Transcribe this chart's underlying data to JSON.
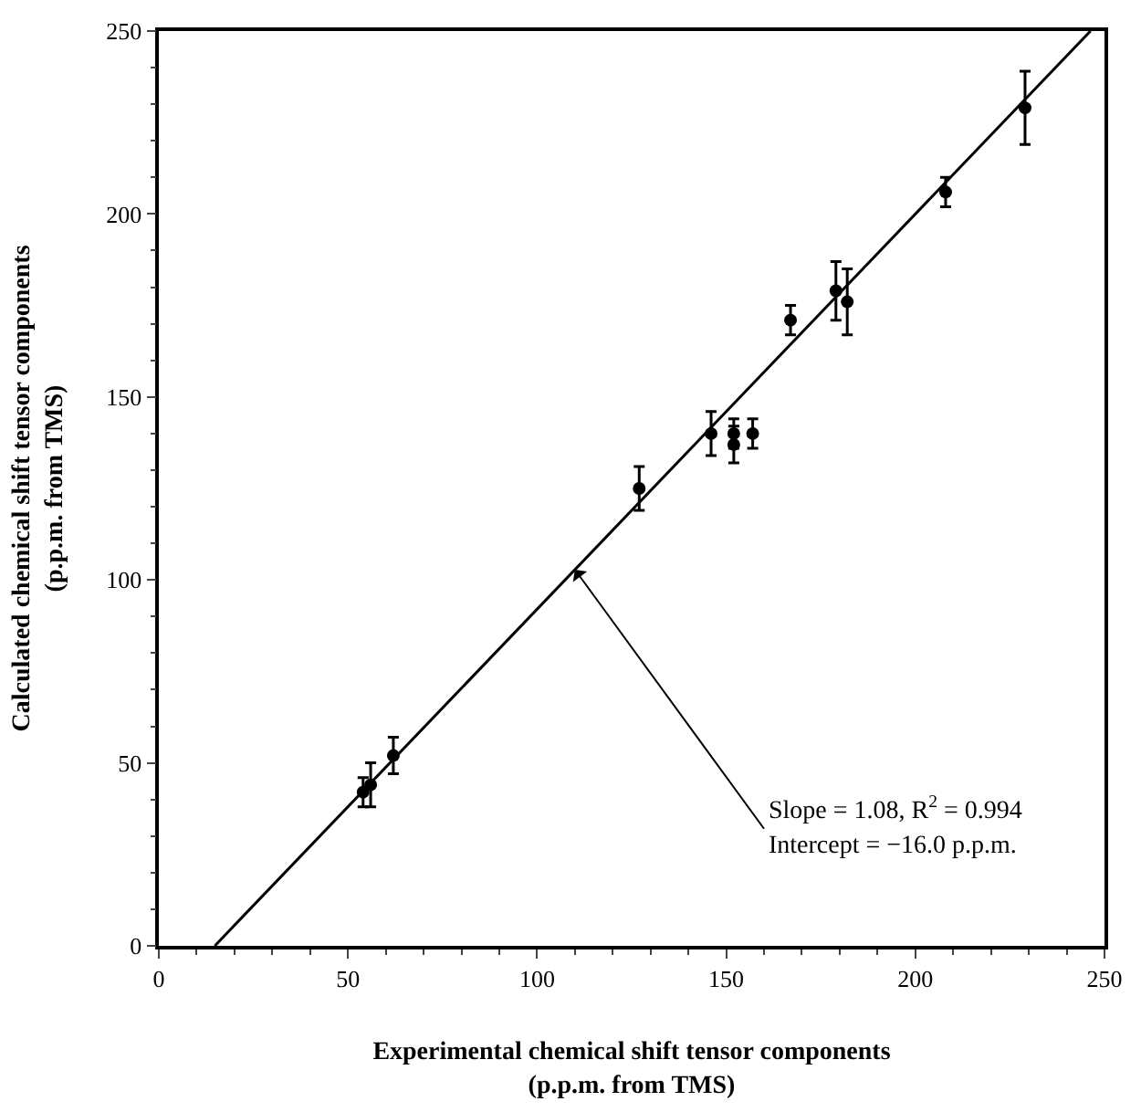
{
  "chart_data": {
    "type": "scatter",
    "xlabel": "Experimental chemical shift tensor components\n(p.p.m. from TMS)",
    "ylabel": "Calculated chemical shift tensor components\n(p.p.m. from TMS)",
    "xlim": [
      0,
      250
    ],
    "xticks": [
      0,
      50,
      100,
      150,
      200,
      250
    ],
    "ylim": [
      0,
      250
    ],
    "yticks": [
      0,
      50,
      100,
      150,
      200,
      250
    ],
    "marker": "circle",
    "series": [
      {
        "color": "#000000",
        "x": [
          54,
          56,
          62,
          127,
          146,
          152,
          152,
          157,
          167,
          179,
          182,
          208,
          229
        ],
        "values": [
          42,
          44,
          52,
          125,
          140,
          137,
          140,
          140,
          171,
          179,
          176,
          206,
          229
        ],
        "errors": [
          4,
          6,
          5,
          6,
          6,
          5,
          4,
          4,
          4,
          8,
          9,
          4,
          10
        ]
      },
      {
        "type": "line",
        "color": "#000000",
        "line_style": "solid",
        "marker": "none",
        "x": [
          14.8,
          246.3
        ],
        "values": [
          0,
          250
        ]
      }
    ],
    "annotations": [
      {
        "text": "Slope = 1.08, R$^{2}$ = 0.994",
        "x": 110,
        "y": 102.8
      },
      "Intercept = −16.0 p.p.m."
    ]
  }
}
